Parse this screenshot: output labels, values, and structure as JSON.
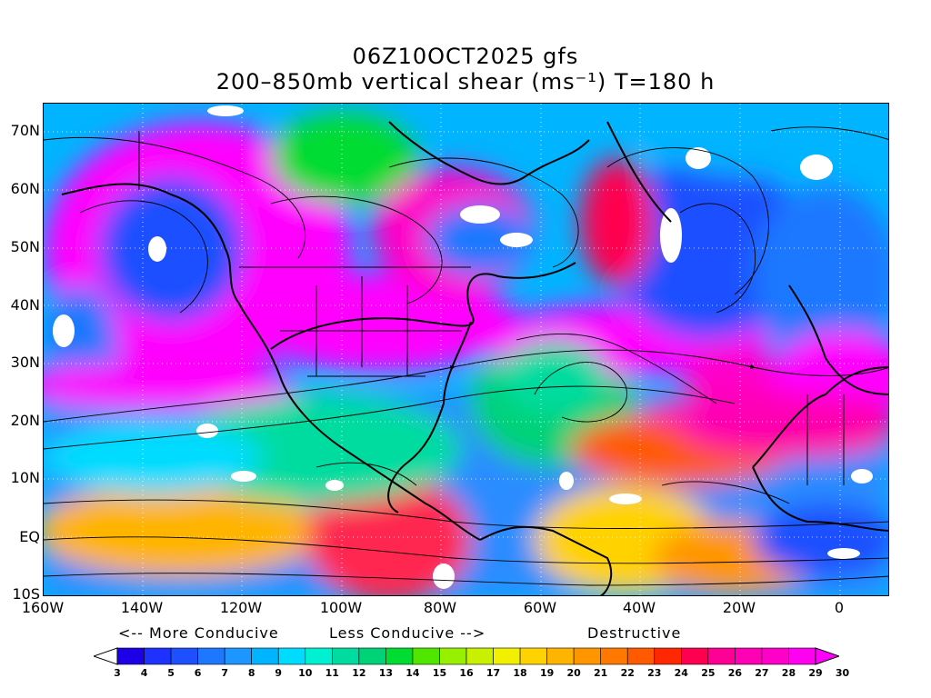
{
  "title_line1": "06Z10OCT2025 gfs",
  "title_line2": "200–850mb vertical shear (ms⁻¹) T=180 h",
  "lat_labels": [
    "70N",
    "60N",
    "50N",
    "40N",
    "30N",
    "20N",
    "10N",
    "EQ",
    "10S"
  ],
  "lon_labels": [
    "160W",
    "140W",
    "120W",
    "100W",
    "80W",
    "60W",
    "40W",
    "20W",
    "0"
  ],
  "conducive_left": "<-- More Conducive",
  "conducive_mid": "Less Conducive -->",
  "conducive_right": "Destructive",
  "colorbar": {
    "labels": [
      "3",
      "4",
      "5",
      "6",
      "7",
      "8",
      "9",
      "10",
      "11",
      "12",
      "13",
      "14",
      "15",
      "16",
      "17",
      "18",
      "19",
      "20",
      "21",
      "22",
      "23",
      "24",
      "25",
      "26",
      "27",
      "28",
      "29",
      "30"
    ],
    "colors": [
      "#ffffff",
      "#1e00e6",
      "#1e32ff",
      "#1e50ff",
      "#1e78ff",
      "#1e96ff",
      "#00b4ff",
      "#00dcff",
      "#00f0d2",
      "#00dca0",
      "#00d278",
      "#00dc32",
      "#50e600",
      "#96f000",
      "#c8f000",
      "#f0f000",
      "#ffd200",
      "#ffb400",
      "#ff9600",
      "#ff7800",
      "#ff5a00",
      "#ff2800",
      "#ff0050",
      "#ff0096",
      "#ff00b4",
      "#ff00c8",
      "#ff00f0",
      "#ff00ff"
    ]
  },
  "map": {
    "lon_range": [
      -160,
      10
    ],
    "lat_range": [
      -10,
      75
    ],
    "gridlines": "dotted"
  }
}
